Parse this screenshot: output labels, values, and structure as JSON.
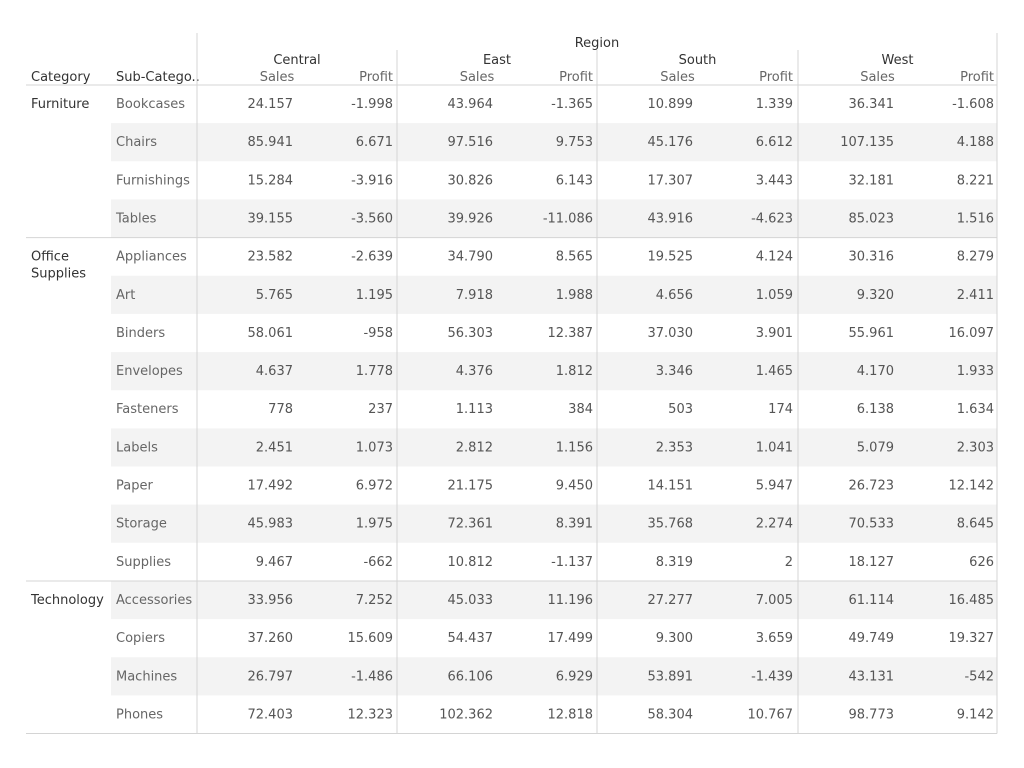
{
  "chart_data": {
    "type": "table",
    "title": "",
    "column_header": "Region",
    "row_headers": [
      "Category",
      "Sub-Catego.."
    ],
    "regions": [
      "Central",
      "East",
      "South",
      "West"
    ],
    "measures": [
      "Sales",
      "Profit"
    ],
    "categories": [
      {
        "name": "Furniture",
        "rows": [
          {
            "sub": "Bookcases",
            "values": [
              "24.157",
              "-1.998",
              "43.964",
              "-1.365",
              "10.899",
              "1.339",
              "36.341",
              "-1.608"
            ]
          },
          {
            "sub": "Chairs",
            "values": [
              "85.941",
              "6.671",
              "97.516",
              "9.753",
              "45.176",
              "6.612",
              "107.135",
              "4.188"
            ]
          },
          {
            "sub": "Furnishings",
            "values": [
              "15.284",
              "-3.916",
              "30.826",
              "6.143",
              "17.307",
              "3.443",
              "32.181",
              "8.221"
            ]
          },
          {
            "sub": "Tables",
            "values": [
              "39.155",
              "-3.560",
              "39.926",
              "-11.086",
              "43.916",
              "-4.623",
              "85.023",
              "1.516"
            ]
          }
        ]
      },
      {
        "name": "Office Supplies",
        "name_lines": [
          "Office",
          "Supplies"
        ],
        "rows": [
          {
            "sub": "Appliances",
            "values": [
              "23.582",
              "-2.639",
              "34.790",
              "8.565",
              "19.525",
              "4.124",
              "30.316",
              "8.279"
            ]
          },
          {
            "sub": "Art",
            "values": [
              "5.765",
              "1.195",
              "7.918",
              "1.988",
              "4.656",
              "1.059",
              "9.320",
              "2.411"
            ]
          },
          {
            "sub": "Binders",
            "values": [
              "58.061",
              "-958",
              "56.303",
              "12.387",
              "37.030",
              "3.901",
              "55.961",
              "16.097"
            ]
          },
          {
            "sub": "Envelopes",
            "values": [
              "4.637",
              "1.778",
              "4.376",
              "1.812",
              "3.346",
              "1.465",
              "4.170",
              "1.933"
            ]
          },
          {
            "sub": "Fasteners",
            "values": [
              "778",
              "237",
              "1.113",
              "384",
              "503",
              "174",
              "6.138",
              "1.634"
            ]
          },
          {
            "sub": "Labels",
            "values": [
              "2.451",
              "1.073",
              "2.812",
              "1.156",
              "2.353",
              "1.041",
              "5.079",
              "2.303"
            ]
          },
          {
            "sub": "Paper",
            "values": [
              "17.492",
              "6.972",
              "21.175",
              "9.450",
              "14.151",
              "5.947",
              "26.723",
              "12.142"
            ]
          },
          {
            "sub": "Storage",
            "values": [
              "45.983",
              "1.975",
              "72.361",
              "8.391",
              "35.768",
              "2.274",
              "70.533",
              "8.645"
            ]
          },
          {
            "sub": "Supplies",
            "values": [
              "9.467",
              "-662",
              "10.812",
              "-1.137",
              "8.319",
              "2",
              "18.127",
              "626"
            ]
          }
        ]
      },
      {
        "name": "Technology",
        "rows": [
          {
            "sub": "Accessories",
            "values": [
              "33.956",
              "7.252",
              "45.033",
              "11.196",
              "27.277",
              "7.005",
              "61.114",
              "16.485"
            ]
          },
          {
            "sub": "Copiers",
            "values": [
              "37.260",
              "15.609",
              "54.437",
              "17.499",
              "9.300",
              "3.659",
              "49.749",
              "19.327"
            ]
          },
          {
            "sub": "Machines",
            "values": [
              "26.797",
              "-1.486",
              "66.106",
              "6.929",
              "53.891",
              "-1.439",
              "43.131",
              "-542"
            ]
          },
          {
            "sub": "Phones",
            "values": [
              "72.403",
              "12.323",
              "102.362",
              "12.818",
              "58.304",
              "10.767",
              "98.773",
              "9.142"
            ]
          }
        ]
      }
    ],
    "colors": {
      "text": "#555555",
      "header_text": "#333333",
      "band": "#f3f3f3",
      "grid": "#d4d4d4",
      "background": "#ffffff"
    }
  }
}
